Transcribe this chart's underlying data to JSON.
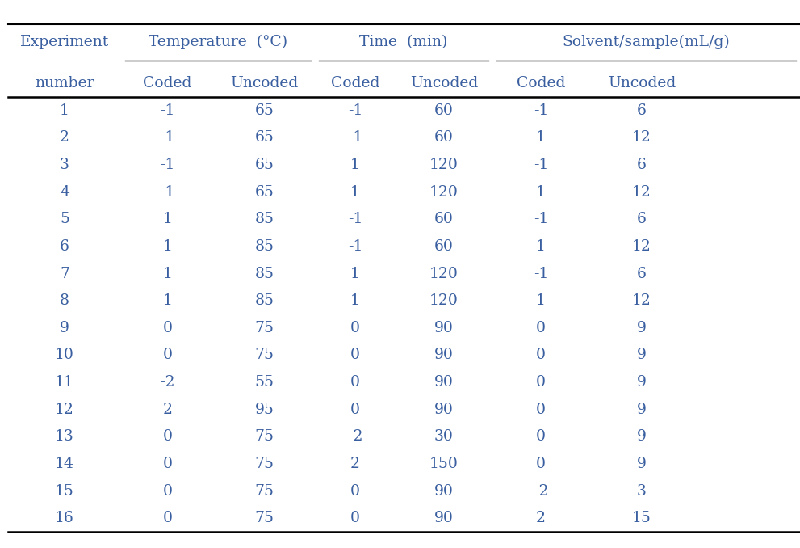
{
  "col_headers_row1": [
    "Experiment",
    "Temperature  (°C)",
    "Time  (min)",
    "Solvent/sample(mL/g)"
  ],
  "col_headers_row2": [
    "number",
    "Coded",
    "Uncoded",
    "Coded",
    "Uncoded",
    "Coded",
    "Uncoded"
  ],
  "rows": [
    [
      "1",
      "-1",
      "65",
      "-1",
      "60",
      "-1",
      "6"
    ],
    [
      "2",
      "-1",
      "65",
      "-1",
      "60",
      "1",
      "12"
    ],
    [
      "3",
      "-1",
      "65",
      "1",
      "120",
      "-1",
      "6"
    ],
    [
      "4",
      "-1",
      "65",
      "1",
      "120",
      "1",
      "12"
    ],
    [
      "5",
      "1",
      "85",
      "-1",
      "60",
      "-1",
      "6"
    ],
    [
      "6",
      "1",
      "85",
      "-1",
      "60",
      "1",
      "12"
    ],
    [
      "7",
      "1",
      "85",
      "1",
      "120",
      "-1",
      "6"
    ],
    [
      "8",
      "1",
      "85",
      "1",
      "120",
      "1",
      "12"
    ],
    [
      "9",
      "0",
      "75",
      "0",
      "90",
      "0",
      "9"
    ],
    [
      "10",
      "0",
      "75",
      "0",
      "90",
      "0",
      "9"
    ],
    [
      "11",
      "-2",
      "55",
      "0",
      "90",
      "0",
      "9"
    ],
    [
      "12",
      "2",
      "95",
      "0",
      "90",
      "0",
      "9"
    ],
    [
      "13",
      "0",
      "75",
      "-2",
      "30",
      "0",
      "9"
    ],
    [
      "14",
      "0",
      "75",
      "2",
      "150",
      "0",
      "9"
    ],
    [
      "15",
      "0",
      "75",
      "0",
      "90",
      "-2",
      "3"
    ],
    [
      "16",
      "0",
      "75",
      "0",
      "90",
      "2",
      "15"
    ]
  ],
  "text_color": "#3a5fa0",
  "line_color": "#000000",
  "bg_color": "#ffffff",
  "font_size": 13.5
}
